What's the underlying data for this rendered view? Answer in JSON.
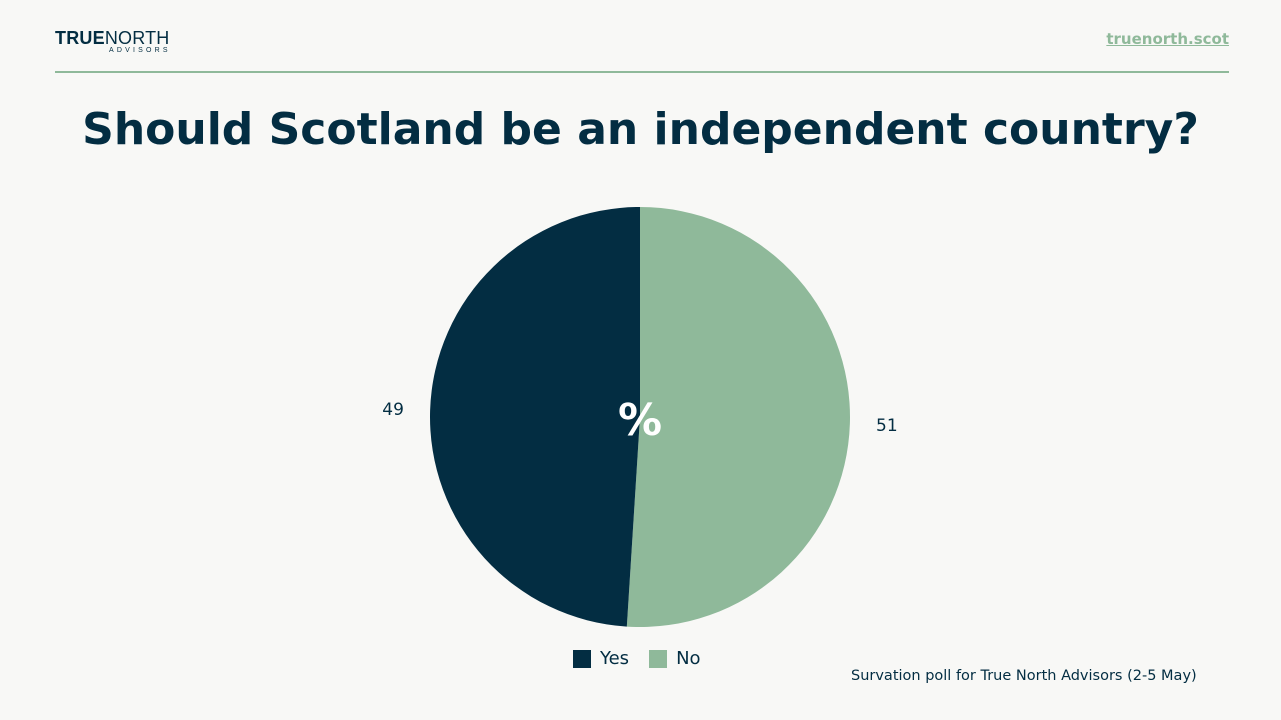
{
  "header": {
    "logo_main_bold": "TRUE",
    "logo_main_light": "NORTH",
    "logo_sub": "ADVISORS",
    "site_link": "truenorth.scot"
  },
  "chart_data": {
    "type": "pie",
    "title": "Should Scotland be an independent country?",
    "center_label": "%",
    "categories": [
      "Yes",
      "No"
    ],
    "values": [
      49,
      51
    ],
    "data_labels": [
      "49",
      "51"
    ],
    "colors": [
      "#032d42",
      "#8fb99a"
    ],
    "legend_placement": "bottom-center",
    "source": "Survation poll for True North Advisors (2-5 May)"
  },
  "colors": {
    "background": "#f8f8f6",
    "navy": "#032d42",
    "sage": "#8fb99a"
  }
}
